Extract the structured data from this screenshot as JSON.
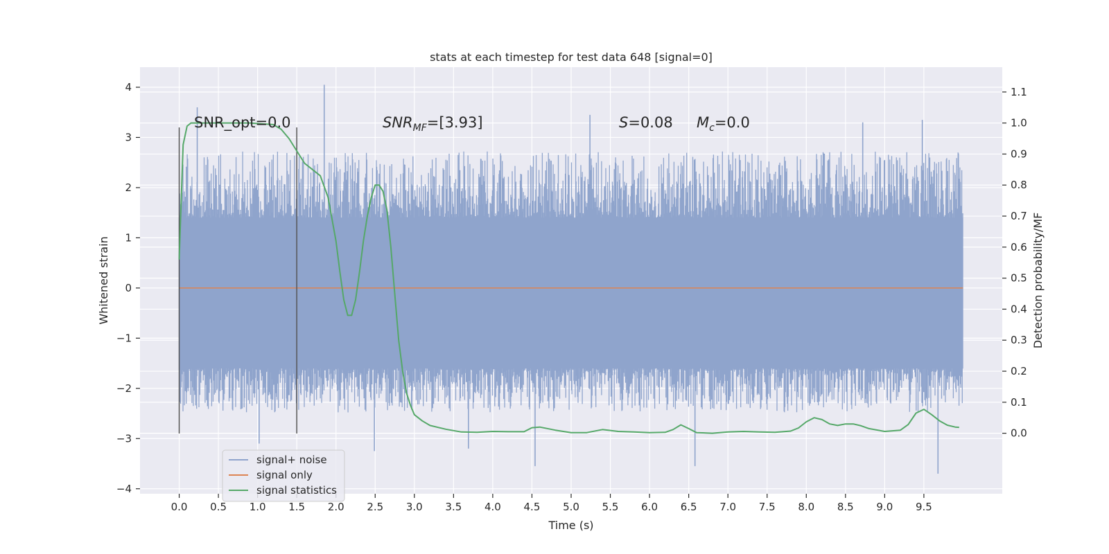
{
  "chart_data": {
    "type": "line",
    "title": "stats at each timestep for test data 648 [signal=0]",
    "xlabel": "Time (s)",
    "ylabel": "Whitened strain",
    "y2label": "Detection probability/MF",
    "xlim": [
      -0.5,
      10.5
    ],
    "ylim": [
      -4.1,
      4.4
    ],
    "y2lim": [
      -0.195,
      1.18
    ],
    "x_ticks": [
      0.0,
      0.5,
      1.0,
      1.5,
      2.0,
      2.5,
      3.0,
      3.5,
      4.0,
      4.5,
      5.0,
      5.5,
      6.0,
      6.5,
      7.0,
      7.5,
      8.0,
      8.5,
      9.0,
      9.5
    ],
    "x_tick_labels": [
      "0.0",
      "0.5",
      "1.0",
      "1.5",
      "2.0",
      "2.5",
      "3.0",
      "3.5",
      "4.0",
      "4.5",
      "5.0",
      "5.5",
      "6.0",
      "6.5",
      "7.0",
      "7.5",
      "8.0",
      "8.5",
      "9.0",
      "9.5"
    ],
    "y_ticks": [
      -4,
      -3,
      -2,
      -1,
      0,
      1,
      2,
      3,
      4
    ],
    "y_tick_labels": [
      "−4",
      "−3",
      "−2",
      "−1",
      "0",
      "1",
      "2",
      "3",
      "4"
    ],
    "y2_ticks": [
      0.0,
      0.1,
      0.2,
      0.3,
      0.4,
      0.5,
      0.6,
      0.7,
      0.8,
      0.9,
      1.0,
      1.1
    ],
    "y2_tick_labels": [
      "0.0",
      "0.1",
      "0.2",
      "0.3",
      "0.4",
      "0.5",
      "0.6",
      "0.7",
      "0.8",
      "0.9",
      "1.0",
      "1.1"
    ],
    "grid": true,
    "legend_position": "lower-left",
    "series": [
      {
        "name": "signal+ noise",
        "color": "#8fa4cc",
        "axis": "left",
        "x_range": [
          0.0,
          10.0
        ],
        "band_envelope": {
          "core": [
            -1.6,
            1.4
          ],
          "typical_extremes": [
            -2.4,
            2.6
          ],
          "peaks": [
            {
              "x": 1.85,
              "y": 4.05
            },
            {
              "x": 0.23,
              "y": 3.6
            },
            {
              "x": 5.24,
              "y": 3.45
            },
            {
              "x": 8.72,
              "y": 3.3
            },
            {
              "x": 9.48,
              "y": 3.35
            },
            {
              "x": 3.69,
              "y": -3.2
            },
            {
              "x": 2.49,
              "y": -3.25
            },
            {
              "x": 4.54,
              "y": -3.55
            },
            {
              "x": 6.58,
              "y": -3.55
            },
            {
              "x": 9.68,
              "y": -3.7
            },
            {
              "x": 1.02,
              "y": -3.1
            }
          ]
        }
      },
      {
        "name": "signal only",
        "color": "#dd8452",
        "axis": "left",
        "x": [
          0.0,
          10.0
        ],
        "y": [
          0.0,
          0.0
        ]
      },
      {
        "name": "signal statistics",
        "color": "#55a868",
        "axis": "right",
        "x": [
          0.0,
          0.05,
          0.1,
          0.15,
          0.2,
          0.5,
          0.9,
          1.2,
          1.3,
          1.4,
          1.5,
          1.6,
          1.7,
          1.8,
          1.9,
          2.0,
          2.05,
          2.1,
          2.15,
          2.2,
          2.25,
          2.3,
          2.35,
          2.4,
          2.45,
          2.5,
          2.55,
          2.6,
          2.65,
          2.7,
          2.75,
          2.8,
          2.85,
          2.9,
          2.95,
          3.0,
          3.1,
          3.2,
          3.4,
          3.6,
          3.8,
          4.0,
          4.2,
          4.4,
          4.5,
          4.6,
          4.8,
          5.0,
          5.2,
          5.4,
          5.6,
          5.8,
          6.0,
          6.2,
          6.3,
          6.4,
          6.5,
          6.6,
          6.8,
          7.0,
          7.2,
          7.4,
          7.6,
          7.8,
          7.9,
          8.0,
          8.1,
          8.2,
          8.3,
          8.4,
          8.5,
          8.6,
          8.7,
          8.8,
          9.0,
          9.2,
          9.3,
          9.4,
          9.5,
          9.6,
          9.7,
          9.8,
          9.9,
          9.95
        ],
        "y": [
          0.56,
          0.93,
          0.99,
          1.0,
          1.0,
          1.0,
          1.0,
          0.995,
          0.98,
          0.95,
          0.91,
          0.87,
          0.85,
          0.83,
          0.76,
          0.62,
          0.52,
          0.43,
          0.38,
          0.38,
          0.43,
          0.52,
          0.62,
          0.7,
          0.76,
          0.8,
          0.8,
          0.78,
          0.72,
          0.6,
          0.45,
          0.3,
          0.2,
          0.13,
          0.09,
          0.06,
          0.04,
          0.025,
          0.013,
          0.004,
          0.003,
          0.006,
          0.005,
          0.005,
          0.018,
          0.02,
          0.01,
          0.002,
          0.002,
          0.012,
          0.006,
          0.004,
          0.002,
          0.003,
          0.012,
          0.027,
          0.015,
          0.002,
          0.0,
          0.004,
          0.006,
          0.004,
          0.003,
          0.007,
          0.017,
          0.037,
          0.05,
          0.044,
          0.03,
          0.025,
          0.03,
          0.03,
          0.024,
          0.015,
          0.006,
          0.01,
          0.028,
          0.065,
          0.077,
          0.06,
          0.04,
          0.026,
          0.02,
          0.019
        ]
      }
    ],
    "annotations": [
      {
        "label": "SNR_opt=0.0"
      },
      {
        "label_main": "SNR",
        "label_sub": "MF",
        "label_rest": "=[3.93]"
      },
      {
        "label_main": "S",
        "label_rest": "=0.08"
      },
      {
        "label_main": "M",
        "label_sub": "c",
        "label_rest": "=0.0"
      }
    ],
    "vertical_lines": [
      {
        "x": 0.0,
        "ymin": -2.9,
        "ymax": 3.2,
        "color": "#555555"
      },
      {
        "x": 1.5,
        "ymin": -2.9,
        "ymax": 3.2,
        "color": "#555555"
      }
    ]
  }
}
